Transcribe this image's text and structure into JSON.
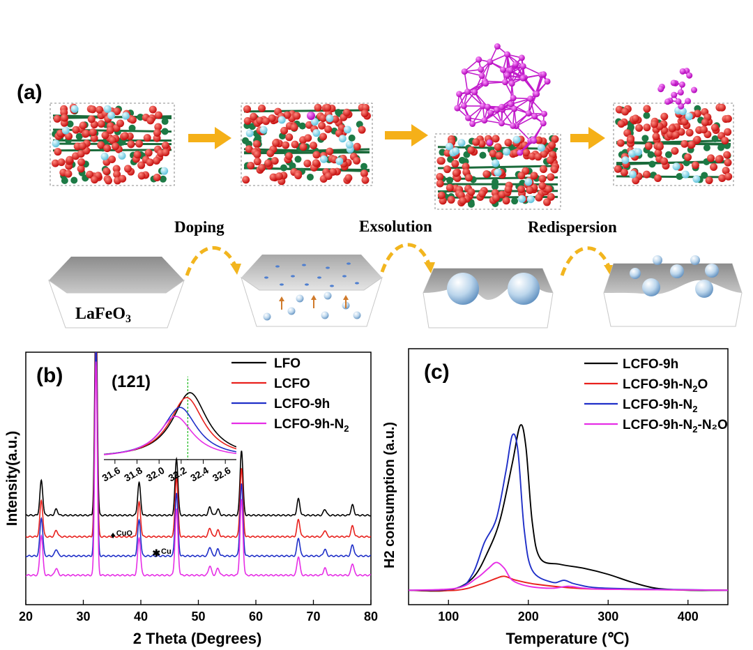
{
  "panel_a": {
    "label": "(a)",
    "stages": [
      "Doping",
      "Exsolution",
      "Redispersion"
    ],
    "substrate_label": "LaFeO",
    "substrate_sub": "3"
  },
  "chart_data": [
    {
      "type": "line",
      "panel": "(b)",
      "xlabel": "2 Theta (Degrees)",
      "ylabel": "Intensity(a.u.)",
      "xlim": [
        20,
        80
      ],
      "xticks": [
        20,
        30,
        40,
        50,
        60,
        70,
        80
      ],
      "peaks": [
        22.7,
        25.3,
        32.2,
        39.7,
        46.2,
        52.0,
        53.4,
        57.5,
        67.4,
        72.0,
        76.8
      ],
      "peak_heights": [
        0.17,
        0.03,
        1.0,
        0.16,
        0.28,
        0.04,
        0.03,
        0.32,
        0.08,
        0.03,
        0.05
      ],
      "series": [
        {
          "name": "LFO",
          "main": "LFO",
          "sub": "",
          "color": "#000000",
          "baseline": 0.31
        },
        {
          "name": "LCFO",
          "main": "LCFO",
          "sub": "",
          "color": "#e8211d",
          "baseline": 0.21
        },
        {
          "name": "LCFO-9h",
          "main": "LCFO-9h",
          "sub": "",
          "color": "#1f2fc8",
          "baseline": 0.12
        },
        {
          "name": "LCFO-9h-N2",
          "main": "LCFO-9h-N",
          "sub": "2",
          "color": "#e62ee6",
          "baseline": 0.03
        }
      ],
      "annotations": [
        {
          "text": "CuO",
          "symbol": "♦",
          "x": 35.6
        },
        {
          "text": "Cu",
          "symbol": "✱",
          "x": 43.4
        }
      ],
      "inset": {
        "label": "(121)",
        "xlim": [
          31.5,
          32.7
        ],
        "xticks": [
          "31.6",
          "31.8",
          "32.0",
          "32.2",
          "32.4",
          "32.6"
        ],
        "reference_line": 32.26,
        "series": [
          {
            "name": "LFO",
            "center": 32.28,
            "amp": 0.8,
            "color": "#000000"
          },
          {
            "name": "LCFO",
            "center": 32.25,
            "amp": 0.74,
            "color": "#e8211d"
          },
          {
            "name": "LCFO-9h",
            "center": 32.19,
            "amp": 0.62,
            "color": "#1f2fc8"
          },
          {
            "name": "LCFO-9h-N2",
            "center": 32.15,
            "amp": 0.51,
            "color": "#e62ee6"
          }
        ]
      }
    },
    {
      "type": "line",
      "panel": "(c)",
      "xlabel": "Temperature (℃)",
      "ylabel": "H2 consumption (a.u.)",
      "xlim": [
        50,
        450
      ],
      "xticks": [
        100,
        200,
        300,
        400
      ],
      "series": [
        {
          "name": "LCFO-9h",
          "main": "LCFO-9h",
          "sub": "",
          "tail": "",
          "color": "#000000",
          "points": [
            [
              50,
              0.02
            ],
            [
              100,
              0.02
            ],
            [
              130,
              0.08
            ],
            [
              150,
              0.22
            ],
            [
              165,
              0.38
            ],
            [
              180,
              0.66
            ],
            [
              190,
              0.85
            ],
            [
              197,
              0.74
            ],
            [
              205,
              0.36
            ],
            [
              215,
              0.18
            ],
            [
              240,
              0.15
            ],
            [
              270,
              0.13
            ],
            [
              300,
              0.1
            ],
            [
              330,
              0.06
            ],
            [
              360,
              0.03
            ],
            [
              400,
              0.02
            ],
            [
              450,
              0.02
            ]
          ]
        },
        {
          "name": "LCFO-9h-N2O",
          "main": "LCFO-9h-N",
          "sub": "2",
          "tail": "O",
          "color": "#e8211d",
          "points": [
            [
              50,
              0.02
            ],
            [
              110,
              0.02
            ],
            [
              140,
              0.05
            ],
            [
              160,
              0.08
            ],
            [
              170,
              0.09
            ],
            [
              185,
              0.07
            ],
            [
              210,
              0.05
            ],
            [
              260,
              0.03
            ],
            [
              300,
              0.025
            ],
            [
              450,
              0.02
            ]
          ]
        },
        {
          "name": "LCFO-9h-N2",
          "main": "LCFO-9h-N",
          "sub": "2",
          "tail": "",
          "color": "#1f2fc8",
          "points": [
            [
              50,
              0.02
            ],
            [
              110,
              0.03
            ],
            [
              130,
              0.1
            ],
            [
              145,
              0.26
            ],
            [
              160,
              0.38
            ],
            [
              172,
              0.62
            ],
            [
              180,
              0.8
            ],
            [
              187,
              0.72
            ],
            [
              195,
              0.32
            ],
            [
              205,
              0.12
            ],
            [
              230,
              0.06
            ],
            [
              245,
              0.07
            ],
            [
              260,
              0.05
            ],
            [
              300,
              0.03
            ],
            [
              450,
              0.02
            ]
          ]
        },
        {
          "name": "LCFO-9h-N2-N2O",
          "main": "LCFO-9h-N",
          "sub": "2",
          "tail": "-N₂O",
          "color": "#e62ee6",
          "points": [
            [
              50,
              0.02
            ],
            [
              110,
              0.03
            ],
            [
              135,
              0.08
            ],
            [
              150,
              0.13
            ],
            [
              160,
              0.16
            ],
            [
              170,
              0.13
            ],
            [
              180,
              0.07
            ],
            [
              200,
              0.04
            ],
            [
              230,
              0.03
            ],
            [
              250,
              0.04
            ],
            [
              270,
              0.03
            ],
            [
              300,
              0.025
            ],
            [
              450,
              0.02
            ]
          ]
        }
      ]
    }
  ]
}
